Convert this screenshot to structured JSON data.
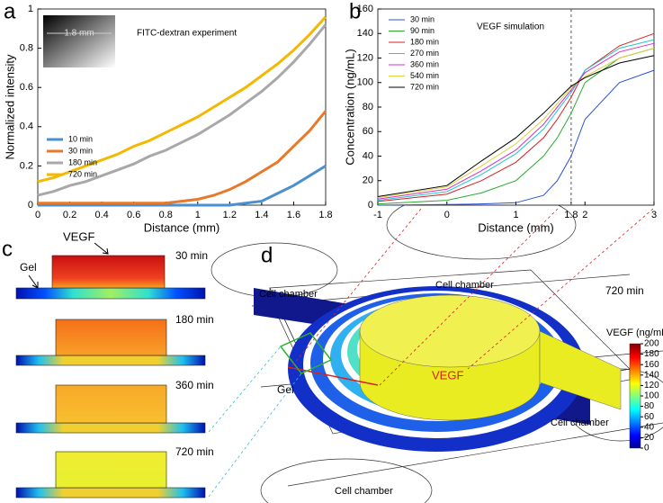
{
  "panel_labels": [
    "a",
    "b",
    "c",
    "d"
  ],
  "chart_data": [
    {
      "type": "line",
      "x_label": "Distance  (mm)",
      "y_label": "Normalized intensity",
      "annotation": "FITC-dextran experiment",
      "inset_label": "1.8 mm",
      "x": [
        0,
        0.1,
        0.2,
        0.3,
        0.4,
        0.5,
        0.6,
        0.7,
        0.8,
        0.9,
        1.0,
        1.1,
        1.2,
        1.3,
        1.4,
        1.5,
        1.6,
        1.7,
        1.8
      ],
      "xlim": [
        0,
        1.8
      ],
      "xticks": [
        0,
        0.2,
        0.4,
        0.6,
        0.8,
        1,
        1.2,
        1.4,
        1.6,
        1.8
      ],
      "ylim": [
        0,
        1
      ],
      "yticks": [
        0,
        0.2,
        0.4,
        0.6,
        0.8,
        1
      ],
      "legend": "lower left",
      "series": [
        {
          "name": "10 min",
          "color": "#4a8fd0",
          "values": [
            0,
            0,
            0,
            0,
            0,
            0,
            0,
            0,
            0,
            0,
            0,
            0,
            0,
            0.01,
            0.02,
            0.06,
            0.1,
            0.15,
            0.2
          ]
        },
        {
          "name": "30 min",
          "color": "#e8782a",
          "values": [
            0.01,
            0.01,
            0.01,
            0.01,
            0.01,
            0.01,
            0.01,
            0.01,
            0.01,
            0.02,
            0.03,
            0.05,
            0.08,
            0.12,
            0.17,
            0.22,
            0.3,
            0.38,
            0.48
          ]
        },
        {
          "name": "180 min",
          "color": "#a8a8a8",
          "values": [
            0.05,
            0.07,
            0.1,
            0.12,
            0.15,
            0.18,
            0.21,
            0.25,
            0.28,
            0.32,
            0.36,
            0.41,
            0.46,
            0.52,
            0.58,
            0.65,
            0.73,
            0.82,
            0.92
          ]
        },
        {
          "name": "720 min",
          "color": "#f5b800",
          "values": [
            0.12,
            0.14,
            0.17,
            0.2,
            0.23,
            0.26,
            0.3,
            0.33,
            0.37,
            0.41,
            0.45,
            0.5,
            0.55,
            0.6,
            0.66,
            0.72,
            0.79,
            0.87,
            0.96
          ]
        }
      ]
    },
    {
      "type": "line",
      "x_label": "Distance  (mm)",
      "y_label": "Concentration (ng/mL)",
      "annotation": "VEGF simulation",
      "reference_x": 1.8,
      "x": [
        -1,
        0,
        0.5,
        1,
        1.4,
        1.6,
        1.8,
        2,
        2.5,
        3
      ],
      "xlim": [
        -1,
        3
      ],
      "xticks": [
        -1,
        0,
        1,
        1.8,
        2,
        3
      ],
      "ylim": [
        0,
        160
      ],
      "yticks": [
        0,
        20,
        40,
        60,
        80,
        100,
        120,
        140,
        160
      ],
      "legend": "upper left",
      "series": [
        {
          "name": "30 min",
          "color": "#2b50d8",
          "values": [
            0,
            0.5,
            1,
            2,
            8,
            20,
            40,
            70,
            100,
            110
          ]
        },
        {
          "name": "90 min",
          "color": "#2ea82e",
          "values": [
            1,
            4,
            10,
            20,
            40,
            55,
            75,
            100,
            120,
            128
          ]
        },
        {
          "name": "180 min",
          "color": "#d82020",
          "values": [
            3,
            9,
            20,
            35,
            55,
            70,
            88,
            110,
            130,
            140
          ]
        },
        {
          "name": "270 min",
          "color": "#20c8d0",
          "values": [
            4,
            11,
            25,
            42,
            62,
            77,
            92,
            110,
            128,
            135
          ]
        },
        {
          "name": "360 min",
          "color": "#d030d0",
          "values": [
            5,
            13,
            28,
            45,
            66,
            80,
            94,
            108,
            125,
            132
          ]
        },
        {
          "name": "540 min",
          "color": "#e0d040",
          "values": [
            6,
            15,
            32,
            50,
            70,
            83,
            96,
            105,
            120,
            128
          ]
        },
        {
          "name": "720 min",
          "color": "#000000",
          "values": [
            7,
            16,
            36,
            55,
            75,
            86,
            97,
            104,
            116,
            122
          ]
        }
      ]
    }
  ],
  "panel_c": {
    "vegf": "VEGF",
    "gel": "Gel",
    "times": [
      "30 min",
      "180 min",
      "360 min",
      "720 min"
    ]
  },
  "panel_d": {
    "chambers": [
      "Cell chamber",
      "Cell chamber",
      "Cell chamber",
      "Cell chamber"
    ],
    "time": "720 min",
    "gel": "Gel",
    "vegf": "VEGF",
    "colorbar": {
      "label": "VEGF (ng/mL)",
      "lim": [
        0,
        200
      ],
      "ticks": [
        0,
        20,
        40,
        60,
        80,
        100,
        120,
        140,
        160,
        180,
        200
      ]
    }
  }
}
